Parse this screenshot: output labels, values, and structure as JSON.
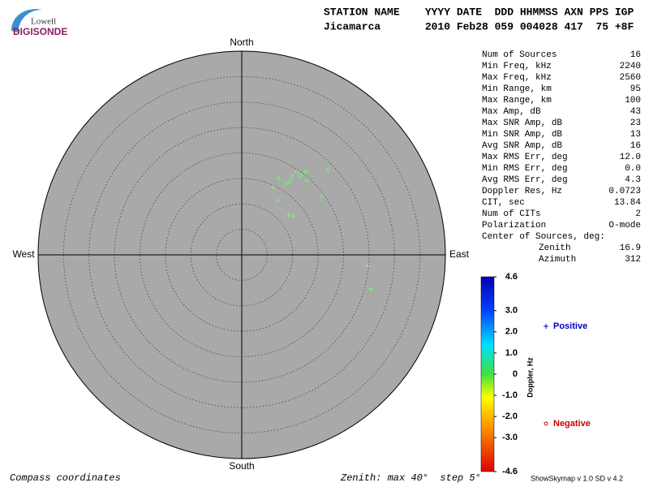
{
  "logo": {
    "top": "Lowell",
    "bottom": "DIGISONDE"
  },
  "header": {
    "line1": "STATION NAME    YYYY DATE  DDD HHMMSS AXN PPS IGP",
    "line2": "Jicamarca       2010 Feb28 059 004028 417  75 +8F"
  },
  "stats": [
    [
      "Num of Sources",
      "16"
    ],
    [
      "Min Freq, kHz",
      "2240"
    ],
    [
      "Max Freq, kHz",
      "2560"
    ],
    [
      "Min Range, km",
      "95"
    ],
    [
      "Max Range, km",
      "100"
    ],
    [
      "Max Amp, dB",
      "43"
    ],
    [
      "Max SNR Amp, dB",
      "23"
    ],
    [
      "Min SNR Amp, dB",
      "13"
    ],
    [
      "Avg SNR Amp, dB",
      "16"
    ],
    [
      "Max RMS Err, deg",
      "12.0"
    ],
    [
      "Min RMS Err, deg",
      "0.0"
    ],
    [
      "Avg RMS Err, deg",
      "4.3"
    ],
    [
      "Doppler Res, Hz",
      "0.0723"
    ],
    [
      "CIT, sec",
      "13.84"
    ],
    [
      "Num of CITs",
      "2"
    ],
    [
      "Polarization",
      "O-mode"
    ]
  ],
  "center_of_sources": {
    "title": "Center of Sources, deg:",
    "rows": [
      [
        "Zenith",
        "16.9"
      ],
      [
        "Azimuth",
        "312"
      ]
    ]
  },
  "chart_data": {
    "type": "skymap",
    "compass": {
      "north": "North",
      "east": "East",
      "south": "South",
      "west": "West"
    },
    "rlim": [
      0,
      40
    ],
    "rticks": [
      5,
      10,
      15,
      20,
      25,
      30,
      35
    ],
    "grid": true,
    "series": [
      {
        "name": "Positive",
        "marker": "plus",
        "color": "#7cf07c",
        "legend_color": "#0000c0",
        "x": [
          7.3,
          6.2,
          7.0,
          9.2,
          10.2,
          24.7,
          25.3
        ],
        "values": [
          15.0,
          13.2,
          10.7,
          7.8,
          7.6,
          -2.2,
          -6.7
        ]
      },
      {
        "name": "Negative",
        "marker": "circle",
        "color": "#7cf07c",
        "legend_color": "#d00000",
        "x": [
          17.0,
          12.6,
          10.8,
          11.6,
          9.9,
          12.9,
          9.4,
          8.6,
          15.8
        ],
        "values": [
          16.7,
          16.4,
          16.2,
          15.6,
          15.3,
          14.6,
          14.3,
          14.0,
          11.5
        ]
      }
    ],
    "colorbar": {
      "label": "Doppler, Hz",
      "lim": [
        -4.6,
        4.6
      ],
      "ticks": [
        4.6,
        {
          "value": 3,
          "label": "3.0"
        },
        {
          "value": 2,
          "label": "2.0"
        },
        {
          "value": 1,
          "label": "1.0"
        },
        0,
        {
          "value": -1,
          "label": "-1.0"
        },
        {
          "value": -2,
          "label": "-2.0"
        },
        {
          "value": -3,
          "label": "-3.0"
        },
        -4.6
      ]
    }
  },
  "footer": {
    "left": "Compass coordinates",
    "center": "Zenith: max 40°  step 5°",
    "right": "ShowSkymap v 1.0  SD v 4.2"
  }
}
